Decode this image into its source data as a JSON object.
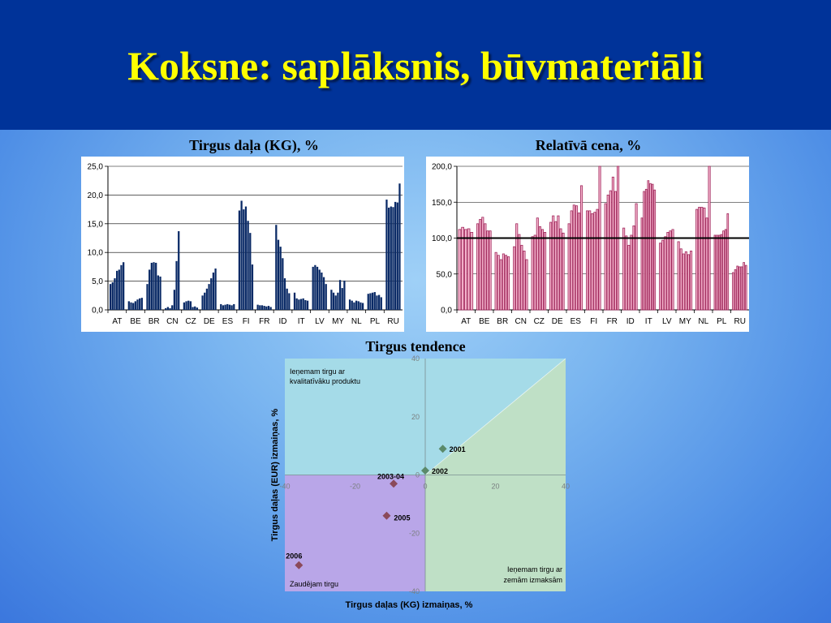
{
  "slide": {
    "title": "Koksne: saplāksnis, būvmateriāli"
  },
  "chart_data": [
    {
      "type": "bar",
      "title": "Tirgus daļa (KG), %",
      "ylim": [
        0,
        25
      ],
      "yticks": [
        "0,0",
        "5,0",
        "10,0",
        "15,0",
        "20,0",
        "25,0"
      ],
      "categories": [
        "AT",
        "BE",
        "BR",
        "CN",
        "CZ",
        "DE",
        "ES",
        "FI",
        "FR",
        "ID",
        "IT",
        "LV",
        "MY",
        "NL",
        "PL",
        "RU"
      ],
      "bar_color": "#0a2a66",
      "values": [
        [
          4.5,
          4.8,
          5.5,
          6.8,
          7.0,
          7.8,
          8.3
        ],
        [
          1.5,
          1.3,
          1.2,
          1.5,
          1.8,
          2.0,
          2.1
        ],
        [
          4.5,
          7.0,
          8.2,
          8.3,
          8.2,
          6.0,
          5.8
        ],
        [
          0.3,
          0.5,
          0.3,
          0.8,
          3.5,
          8.5,
          13.7
        ],
        [
          1.3,
          1.5,
          1.6,
          1.5,
          0.5,
          0.6,
          0.4
        ],
        [
          2.5,
          3.0,
          3.7,
          4.5,
          5.5,
          6.5,
          7.2
        ],
        [
          1.0,
          0.8,
          0.9,
          1.0,
          0.9,
          0.8,
          1.0
        ],
        [
          17.3,
          19.0,
          17.5,
          18.0,
          15.5,
          13.4,
          7.9
        ],
        [
          0.9,
          0.8,
          0.8,
          0.7,
          0.6,
          0.7,
          0.5
        ],
        [
          14.8,
          12.2,
          11.0,
          9.0,
          5.5,
          3.7,
          2.9
        ],
        [
          3.0,
          2.0,
          1.8,
          1.9,
          2.0,
          1.7,
          1.6
        ],
        [
          7.5,
          7.8,
          7.5,
          7.0,
          6.5,
          5.7,
          4.5
        ],
        [
          3.5,
          3.0,
          2.5,
          3.0,
          5.2,
          3.8,
          5.1
        ],
        [
          1.8,
          1.6,
          1.3,
          1.6,
          1.5,
          1.3,
          1.2
        ],
        [
          2.8,
          2.9,
          3.0,
          3.1,
          2.5,
          2.6,
          2.2
        ],
        [
          19.2,
          17.8,
          18.0,
          17.9,
          18.8,
          18.7,
          22.0
        ]
      ]
    },
    {
      "type": "bar",
      "title": "Relatīvā cena, %",
      "ylim": [
        0,
        200
      ],
      "yticks": [
        "0,0",
        "50,0",
        "100,0",
        "150,0",
        "200,0"
      ],
      "reference_line": 100,
      "categories": [
        "AT",
        "BE",
        "BR",
        "CN",
        "CZ",
        "DE",
        "ES",
        "FI",
        "FR",
        "ID",
        "IT",
        "LV",
        "MY",
        "NL",
        "PL",
        "RU"
      ],
      "bar_color": "#f6b7cf",
      "bar_edge_color": "#a0265a",
      "values": [
        [
          112,
          115,
          112,
          113,
          108
        ],
        [
          120,
          126,
          129,
          120,
          110,
          110
        ],
        [
          80,
          76,
          70,
          78,
          76,
          74
        ],
        [
          88,
          120,
          105,
          90,
          82,
          70
        ],
        [
          102,
          104,
          128,
          116,
          112,
          108
        ],
        [
          122,
          131,
          123,
          131,
          113,
          107
        ],
        [
          120,
          138,
          146,
          145,
          135,
          173
        ],
        [
          138,
          138,
          134,
          136,
          140,
          200
        ],
        [
          148,
          160,
          166,
          185,
          165,
          200
        ],
        [
          114,
          103,
          90,
          104,
          117,
          148
        ],
        [
          128,
          165,
          168,
          180,
          176,
          175,
          167
        ],
        [
          93,
          97,
          102,
          108,
          110,
          112
        ],
        [
          95,
          85,
          78,
          81,
          77,
          82
        ],
        [
          140,
          143,
          143,
          142,
          128,
          200
        ],
        [
          104,
          104,
          104,
          105,
          110,
          112,
          134
        ],
        [
          52,
          56,
          61,
          60,
          60,
          66,
          62
        ]
      ]
    },
    {
      "type": "scatter",
      "title": "Tirgus tendence",
      "xlabel": "Tirgus daļas (KG) izmaiņas, %",
      "ylabel": "Tirgus daļas (EUR) izmaiņas, %",
      "xlim": [
        -40,
        40
      ],
      "ylim": [
        -40,
        40
      ],
      "xticks": [
        "-40",
        "-20",
        "0",
        "20",
        "40"
      ],
      "yticks": [
        "-40",
        "-20",
        "0",
        "20",
        "40"
      ],
      "points": [
        {
          "label": "2001",
          "x": 5,
          "y": 9,
          "color": "#5b8a6a"
        },
        {
          "label": "2002",
          "x": 0,
          "y": 1.5,
          "color": "#5b8a6a"
        },
        {
          "label": "2003-04",
          "x": -9,
          "y": -3,
          "color": "#8b4a5a"
        },
        {
          "label": "2005",
          "x": -11,
          "y": -14,
          "color": "#8b4a5a"
        },
        {
          "label": "2006",
          "x": -36,
          "y": -31,
          "color": "#8b4a5a"
        }
      ],
      "quadrant_labels": {
        "top_left": [
          "Ieņemam tirgu ar",
          "kvalitatīvāku produktu"
        ],
        "bottom_right": [
          "Ieņemam tirgu ar",
          "zemām izmaksām"
        ],
        "bottom_left": "Zaudējam tirgu"
      },
      "region_colors": {
        "upper": "#a5dbe8",
        "lower": "#bfe0c6",
        "lost": "#b9a6e8"
      }
    }
  ]
}
